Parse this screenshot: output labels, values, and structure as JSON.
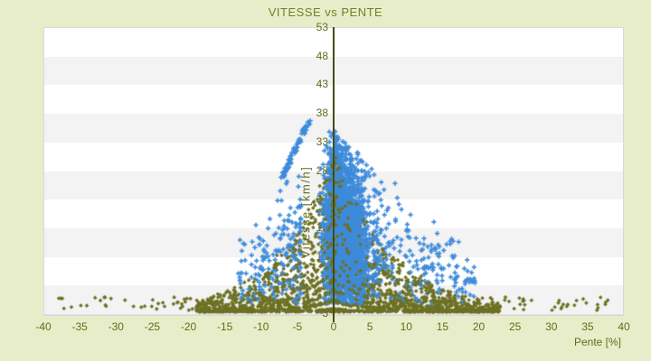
{
  "title": "VITESSE vs PENTE",
  "colors": {
    "page_bg": "#e8edc9",
    "title_text": "#728026",
    "tick_text": "#656b19",
    "band_fill": "#f3f3f3",
    "grid_line": "#e2e2e2",
    "plot_border": "#d8d8d8",
    "axis_line": "#474c06",
    "series_vitesse": "#3e8bdb",
    "series_pente": "#6d7123"
  },
  "chart_data": {
    "type": "scatter",
    "title": "VITESSE vs PENTE",
    "xlabel": "Pente [%]",
    "ylabel": "Vitesse [km/h]",
    "xlim": [
      -40,
      40
    ],
    "ylim": [
      3,
      53
    ],
    "xticks": [
      -40,
      -35,
      -30,
      -25,
      -20,
      -15,
      -10,
      -5,
      0,
      5,
      10,
      15,
      20,
      25,
      30,
      35,
      40
    ],
    "yticks": [
      53,
      48,
      43,
      38,
      33,
      28,
      23,
      18,
      13,
      8,
      3
    ],
    "grid": {
      "horizontal_bands": true,
      "vertical_axis_at_x": 0,
      "legend": "none"
    },
    "description": "Dense scatter of speed vs slope: blue plus markers form a peaked cluster centred near 0% slope reaching ~37 km/h; olive diamond markers fan out in hyperbola-like decay curves from the centre toward ±40% slope at low speed (~3-6 km/h).",
    "series": [
      {
        "name": "pente",
        "color": "#6d7123",
        "marker": "diamond",
        "marker_size": 4.6,
        "count": 2600,
        "seed": 101,
        "gen": {
          "kind": "decay-fan",
          "y_base": 3,
          "level_min": 3.5,
          "level_max": 31,
          "level_step": 1.75,
          "level_bias": 1.7,
          "tau": 6.8,
          "x_dense_right": 23,
          "x_dense_left": 19,
          "x_sparse_max": 38,
          "x_bias": 1.8,
          "right_frac": 0.56,
          "noise": 0.55,
          "sparse_frac": 0.045
        }
      },
      {
        "name": "vitesse",
        "color": "#3e8bdb",
        "marker": "plus",
        "marker_size": 5.2,
        "count": 3400,
        "seed": 202,
        "gen": {
          "kind": "peak-cluster",
          "x_mu": 1.2,
          "x_sigma": 4.0,
          "sigma_right_mult": 1.45,
          "tail_frac": 0.13,
          "x_min": -13.5,
          "x_max": 19.5,
          "y_min": 4.3,
          "peak_y_left": 37.5,
          "peak_y_right": 36,
          "slope_left": 1.55,
          "slope_right": 1.18,
          "y_pow": 1.3,
          "streak": {
            "count": 70,
            "x0": -7.2,
            "y0": 26.5,
            "x1": -3.2,
            "y1": 37.2,
            "jitter": 0.55
          }
        }
      }
    ]
  }
}
